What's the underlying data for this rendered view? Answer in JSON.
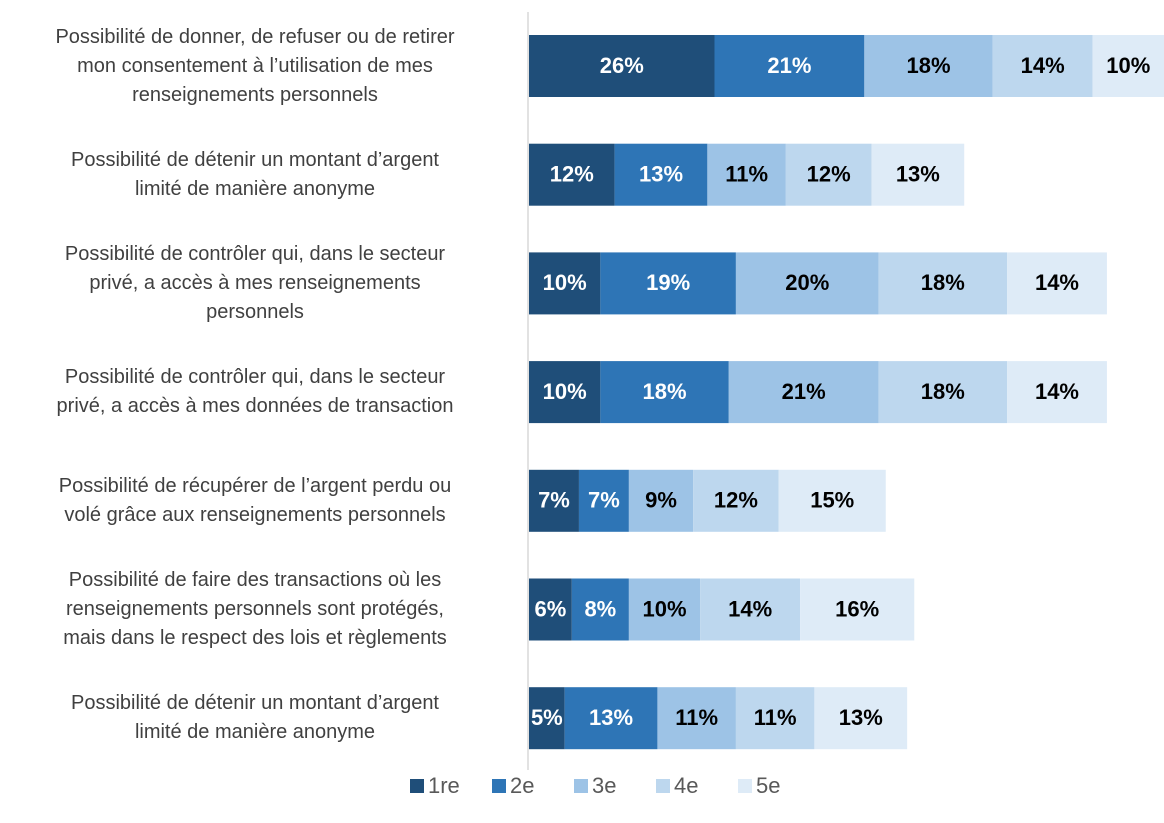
{
  "chart_data": {
    "type": "stacked_barh",
    "categories": [
      "Possibilité de donner, de refuser ou de retirer\nmon consentement à l’utilisation de mes\nrenseignements personnels",
      "Possibilité de détenir un montant d’argent\nlimité de manière anonyme",
      "Possibilité de contrôler qui, dans le secteur\nprivé, a accès à mes renseignements\npersonnels",
      "Possibilité de contrôler qui, dans le secteur\nprivé, a accès à mes données de transaction",
      "Possibilité de récupérer de l’argent perdu ou\nvolé grâce aux renseignements personnels",
      "Possibilité de faire des transactions où les\nrenseignements personnels sont protégés,\nmais dans le respect des lois et règlements",
      "Possibilité de détenir un montant d’argent\nlimité de manière anonyme"
    ],
    "series": [
      {
        "name": "1re",
        "color": "#1f4e79",
        "values": [
          26,
          12,
          10,
          10,
          7,
          6,
          5
        ],
        "value_labels": [
          "26%",
          "12%",
          "10%",
          "10%",
          "7%",
          "6%",
          "5%"
        ]
      },
      {
        "name": "2e",
        "color": "#2e75b6",
        "values": [
          21,
          13,
          19,
          18,
          7,
          8,
          13
        ],
        "value_labels": [
          "21%",
          "13%",
          "19%",
          "18%",
          "7%",
          "8%",
          "13%"
        ]
      },
      {
        "name": "3e",
        "color": "#9dc3e6",
        "values": [
          18,
          11,
          20,
          21,
          9,
          10,
          11
        ],
        "value_labels": [
          "18%",
          "11%",
          "20%",
          "21%",
          "9%",
          "10%",
          "11%"
        ]
      },
      {
        "name": "4e",
        "color": "#bdd7ee",
        "values": [
          14,
          12,
          18,
          18,
          12,
          14,
          11
        ],
        "value_labels": [
          "14%",
          "12%",
          "18%",
          "18%",
          "12%",
          "14%",
          "11%"
        ]
      },
      {
        "name": "5e",
        "color": "#deebf7",
        "values": [
          10,
          13,
          14,
          14,
          15,
          16,
          13
        ],
        "value_labels": [
          "10%",
          "13%",
          "14%",
          "14%",
          "15%",
          "16%",
          "13%"
        ]
      }
    ],
    "legend": "bottom"
  }
}
